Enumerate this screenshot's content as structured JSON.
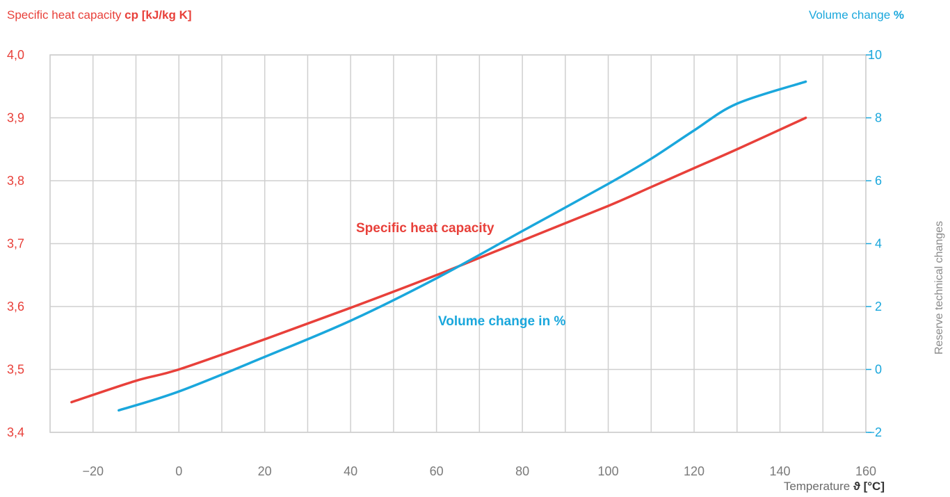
{
  "chart_data": {
    "type": "line",
    "left_axis": {
      "title_prefix": "Specific heat capacity ",
      "title_symbol": "cp [kJ/kg K]",
      "ylim": [
        3.4,
        4.0
      ],
      "ticks": [
        "3,4",
        "3,5",
        "3,6",
        "3,7",
        "3,8",
        "3,9",
        "4,0"
      ]
    },
    "right_axis": {
      "title_prefix": "Volume change ",
      "title_symbol": "%",
      "ylim": [
        -2,
        10
      ],
      "ticks": [
        "−2",
        "0",
        "2",
        "4",
        "6",
        "8",
        "10"
      ]
    },
    "x_axis": {
      "title_prefix": "Temperature ",
      "title_symbol": "ϑ [°C]",
      "xlim": [
        -30,
        160
      ],
      "ticks": [
        "−20",
        "0",
        "20",
        "40",
        "60",
        "80",
        "100",
        "120",
        "140",
        "160"
      ]
    },
    "grid": true,
    "series": [
      {
        "name": "Specific heat capacity",
        "axis": "left",
        "color": "#e8403a",
        "x": [
          -25,
          -10,
          0,
          20,
          40,
          60,
          80,
          100,
          110,
          120,
          130,
          146
        ],
        "y": [
          3.448,
          3.482,
          3.5,
          3.548,
          3.598,
          3.65,
          3.705,
          3.76,
          3.79,
          3.82,
          3.85,
          3.9
        ]
      },
      {
        "name": "Volume change in %",
        "axis": "right",
        "color": "#1aa7dc",
        "x": [
          -14,
          0,
          20,
          40,
          60,
          80,
          100,
          110,
          120,
          130,
          146
        ],
        "y": [
          -1.3,
          -0.7,
          0.4,
          1.55,
          2.9,
          4.4,
          5.9,
          6.7,
          7.6,
          8.45,
          9.15
        ]
      }
    ]
  },
  "side_note": "Reserve technical changes"
}
